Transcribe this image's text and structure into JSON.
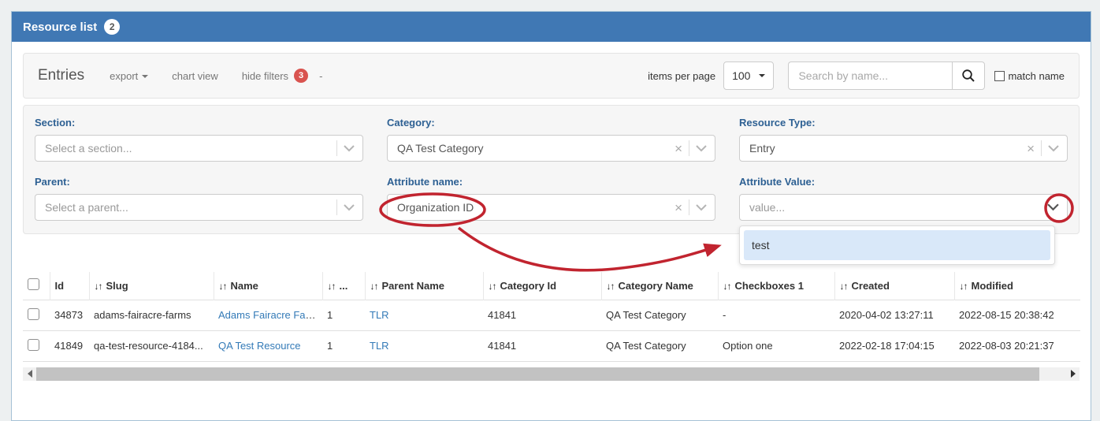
{
  "panel": {
    "title": "Resource list",
    "count_badge": "2"
  },
  "toolbar": {
    "heading": "Entries",
    "export_label": "export",
    "chart_view_label": "chart view",
    "hide_filters_label": "hide filters",
    "filters_badge": "3",
    "dash": "-",
    "items_per_page_label": "items per page",
    "items_per_page_value": "100",
    "search_placeholder": "Search by name...",
    "match_name_label": "match name"
  },
  "filters": {
    "section": {
      "label": "Section:",
      "placeholder": "Select a section..."
    },
    "category": {
      "label": "Category:",
      "value": "QA Test Category"
    },
    "resource_type": {
      "label": "Resource Type:",
      "value": "Entry"
    },
    "parent": {
      "label": "Parent:",
      "placeholder": "Select a parent..."
    },
    "attribute_name": {
      "label": "Attribute name:",
      "value": "Organization ID"
    },
    "attribute_value": {
      "label": "Attribute Value:",
      "placeholder": "value...",
      "dropdown_options": [
        "test"
      ]
    }
  },
  "table": {
    "columns": [
      {
        "label": "Id",
        "sortable": false
      },
      {
        "label": "Slug",
        "sortable": true
      },
      {
        "label": "Name",
        "sortable": true
      },
      {
        "label": "...",
        "sortable": true
      },
      {
        "label": "Parent Name",
        "sortable": true
      },
      {
        "label": "Category Id",
        "sortable": true
      },
      {
        "label": "Category Name",
        "sortable": true
      },
      {
        "label": "Checkboxes 1",
        "sortable": true
      },
      {
        "label": "Created",
        "sortable": true
      },
      {
        "label": "Modified",
        "sortable": true
      }
    ],
    "rows": [
      [
        "34873",
        "adams-fairacre-farms",
        "Adams Fairacre Farms",
        "1",
        "TLR",
        "41841",
        "QA Test Category",
        "-",
        "2020-04-02 13:27:11",
        "2022-08-15 20:38:42"
      ],
      [
        "41849",
        "qa-test-resource-4184...",
        "QA Test Resource",
        "1",
        "TLR",
        "41841",
        "QA Test Category",
        "Option one",
        "2022-02-18 17:04:15",
        "2022-08-03 20:21:37"
      ]
    ]
  },
  "icons": {
    "sort": "↓↑",
    "clear": "×"
  },
  "colors": {
    "header_blue": "#4078b4",
    "label_blue": "#2d6093",
    "link_blue": "#337ab7",
    "badge_red": "#d9534f",
    "annotation_red": "#c1242f",
    "option_highlight": "#d9e8f9"
  }
}
